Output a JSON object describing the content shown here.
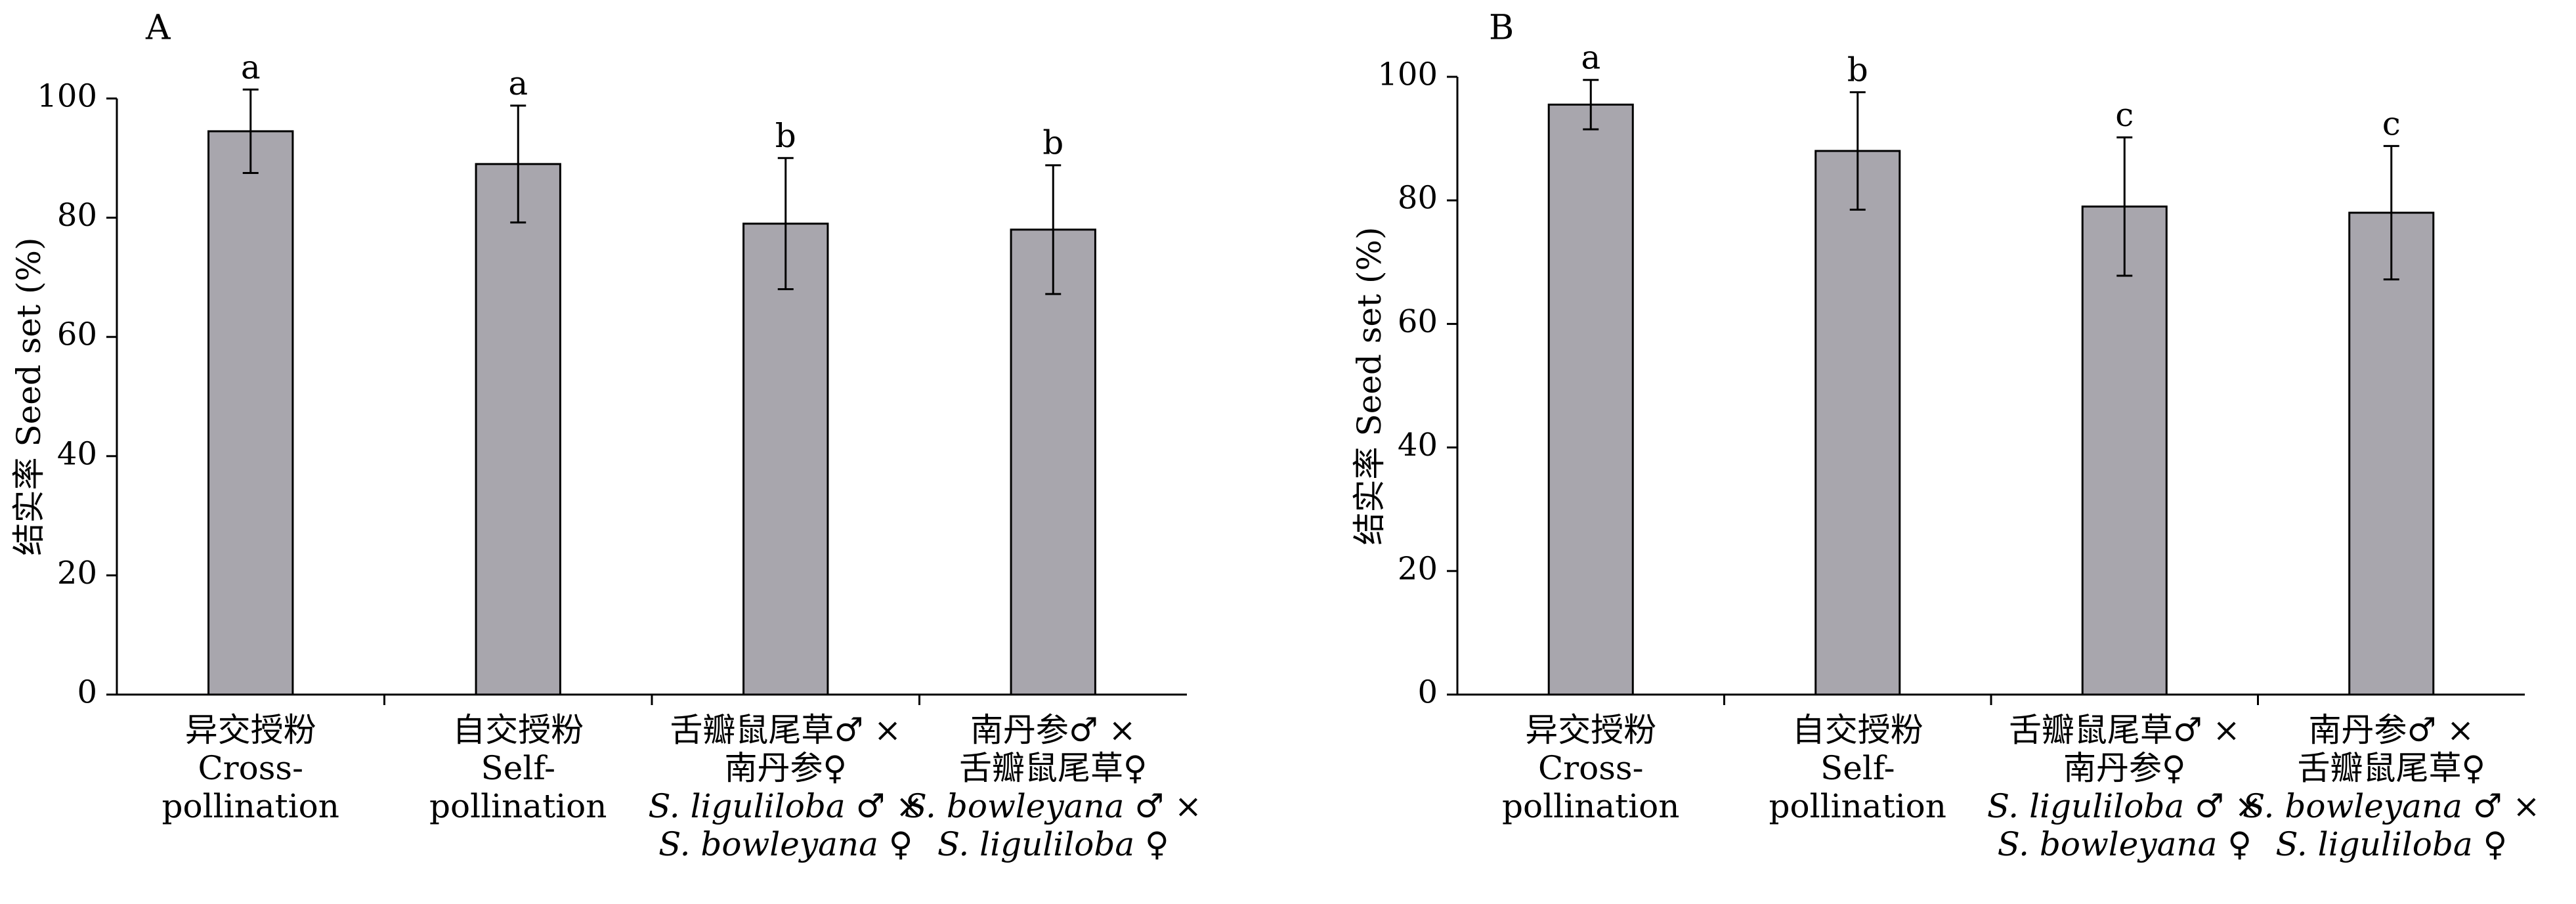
{
  "chart_data": [
    {
      "type": "bar",
      "panel": "A",
      "ylabel": "结实率 Seed set (%)",
      "ylim": [
        0,
        100
      ],
      "yticks": [
        0,
        20,
        40,
        60,
        80,
        100
      ],
      "grid": false,
      "bar_color": "#a8a6ad",
      "categories": [
        [
          "异交授粉",
          "Cross-",
          "pollination"
        ],
        [
          "自交授粉",
          "Self-",
          "pollination"
        ],
        [
          "舌瓣鼠尾草♂ ×",
          "南丹参♀",
          "S. liguliloba ♂ ×",
          "S. bowleyana ♀"
        ],
        [
          "南丹参♂ ×",
          "舌瓣鼠尾草♀",
          "S. bowleyana ♂ ×",
          "S. liguliloba ♀"
        ]
      ],
      "values": [
        94.5,
        89.0,
        79.0,
        78.0
      ],
      "error": [
        7.0,
        9.8,
        11.0,
        10.8
      ],
      "significance": [
        "a",
        "a",
        "b",
        "b"
      ]
    },
    {
      "type": "bar",
      "panel": "B",
      "ylabel": "结实率 Seed set (%)",
      "ylim": [
        0,
        100
      ],
      "yticks": [
        0,
        20,
        40,
        60,
        80,
        100
      ],
      "grid": false,
      "bar_color": "#a8a6ad",
      "categories": [
        [
          "异交授粉",
          "Cross-",
          "pollination"
        ],
        [
          "自交授粉",
          "Self-",
          "pollination"
        ],
        [
          "舌瓣鼠尾草♂ ×",
          "南丹参♀",
          "S. liguliloba ♂ ×",
          "S. bowleyana ♀"
        ],
        [
          "南丹参♂ ×",
          "舌瓣鼠尾草♀",
          "S. bowleyana ♂ ×",
          "S. liguliloba ♀"
        ]
      ],
      "values": [
        95.5,
        88.0,
        79.0,
        78.0
      ],
      "error": [
        4.0,
        9.5,
        11.2,
        10.8
      ],
      "significance": [
        "a",
        "b",
        "c",
        "c"
      ]
    }
  ]
}
